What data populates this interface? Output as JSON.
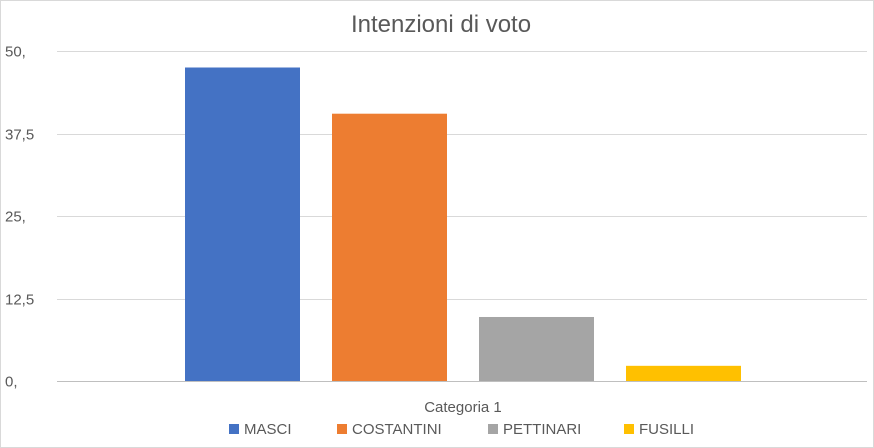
{
  "chart_data": {
    "type": "bar",
    "title": "Intenzioni di voto",
    "categories": [
      "Categoria 1"
    ],
    "series": [
      {
        "name": "MASCI",
        "values": [
          47.5
        ],
        "color": "#4472C4"
      },
      {
        "name": "COSTANTINI",
        "values": [
          40.5
        ],
        "color": "#ED7D31"
      },
      {
        "name": "PETTINARI",
        "values": [
          9.7
        ],
        "color": "#A5A5A5"
      },
      {
        "name": "FUSILLI",
        "values": [
          2.3
        ],
        "color": "#FFC000"
      }
    ],
    "ylim": [
      0,
      50
    ],
    "yticks": [
      0,
      12.5,
      25,
      37.5,
      50
    ],
    "ytick_labels": [
      "0,",
      "12,5",
      "25,",
      "37,5",
      "50,"
    ],
    "xlabel": "",
    "ylabel": "",
    "grid": true,
    "legend_position": "bottom"
  }
}
